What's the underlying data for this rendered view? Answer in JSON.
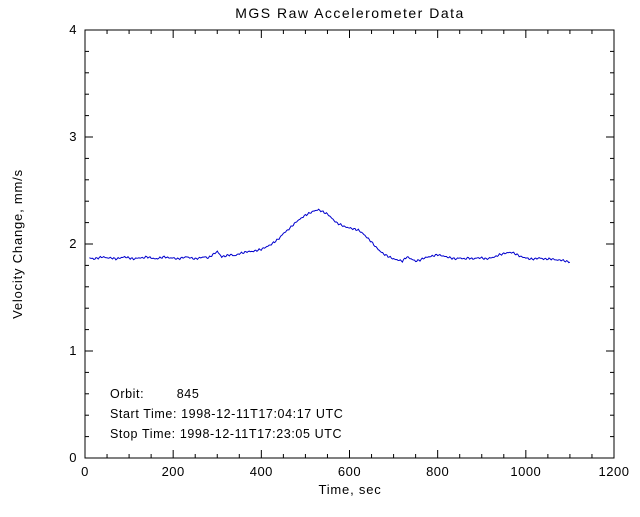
{
  "page": {
    "background": "#ffffff"
  },
  "chart_data": {
    "type": "line",
    "title": "MGS Raw Accelerometer Data",
    "xlabel": "Time, sec",
    "ylabel": "Velocity Change, mm/s",
    "xlim": [
      0,
      1200
    ],
    "ylim": [
      0,
      4
    ],
    "xticks": [
      0,
      200,
      400,
      600,
      800,
      1000,
      1200
    ],
    "yticks": [
      0,
      1,
      2,
      3,
      4
    ],
    "x_minor_divs": 4,
    "y_minor_divs": 5,
    "grid": false,
    "legend": "none",
    "line_color": "#0000cd",
    "axis_color": "#000000",
    "series": [
      {
        "name": "velocity-change",
        "x": [
          10,
          20,
          30,
          40,
          50,
          60,
          70,
          80,
          90,
          100,
          110,
          120,
          130,
          140,
          150,
          160,
          170,
          180,
          190,
          200,
          210,
          220,
          230,
          240,
          250,
          260,
          270,
          280,
          290,
          300,
          310,
          320,
          330,
          340,
          350,
          360,
          370,
          380,
          390,
          400,
          410,
          420,
          430,
          440,
          450,
          460,
          470,
          480,
          490,
          500,
          510,
          520,
          530,
          540,
          550,
          560,
          570,
          580,
          590,
          600,
          610,
          620,
          630,
          640,
          650,
          660,
          670,
          680,
          690,
          700,
          710,
          720,
          730,
          740,
          750,
          760,
          770,
          780,
          790,
          800,
          810,
          820,
          830,
          840,
          850,
          860,
          870,
          880,
          890,
          900,
          910,
          920,
          930,
          940,
          950,
          960,
          970,
          980,
          990,
          1000,
          1010,
          1020,
          1030,
          1040,
          1050,
          1060,
          1070,
          1080,
          1090,
          1100
        ],
        "y": [
          1.87,
          1.86,
          1.87,
          1.88,
          1.87,
          1.87,
          1.86,
          1.87,
          1.88,
          1.87,
          1.86,
          1.87,
          1.87,
          1.88,
          1.87,
          1.86,
          1.87,
          1.88,
          1.87,
          1.87,
          1.86,
          1.87,
          1.88,
          1.87,
          1.86,
          1.87,
          1.88,
          1.87,
          1.9,
          1.93,
          1.88,
          1.89,
          1.9,
          1.89,
          1.91,
          1.92,
          1.93,
          1.93,
          1.94,
          1.95,
          1.97,
          1.99,
          2.02,
          2.05,
          2.1,
          2.13,
          2.17,
          2.21,
          2.24,
          2.27,
          2.29,
          2.31,
          2.32,
          2.3,
          2.28,
          2.24,
          2.2,
          2.18,
          2.16,
          2.15,
          2.14,
          2.13,
          2.1,
          2.06,
          2.02,
          1.97,
          1.93,
          1.9,
          1.88,
          1.86,
          1.85,
          1.84,
          1.88,
          1.86,
          1.84,
          1.85,
          1.87,
          1.88,
          1.89,
          1.9,
          1.89,
          1.88,
          1.87,
          1.86,
          1.87,
          1.86,
          1.87,
          1.86,
          1.87,
          1.87,
          1.86,
          1.87,
          1.88,
          1.9,
          1.91,
          1.92,
          1.92,
          1.9,
          1.88,
          1.87,
          1.86,
          1.86,
          1.87,
          1.86,
          1.86,
          1.86,
          1.85,
          1.85,
          1.84,
          1.83
        ]
      }
    ],
    "annotations": [
      "Orbit:        845",
      "Start Time: 1998-12-11T17:04:17 UTC",
      "Stop Time: 1998-12-11T17:23:05 UTC"
    ]
  }
}
